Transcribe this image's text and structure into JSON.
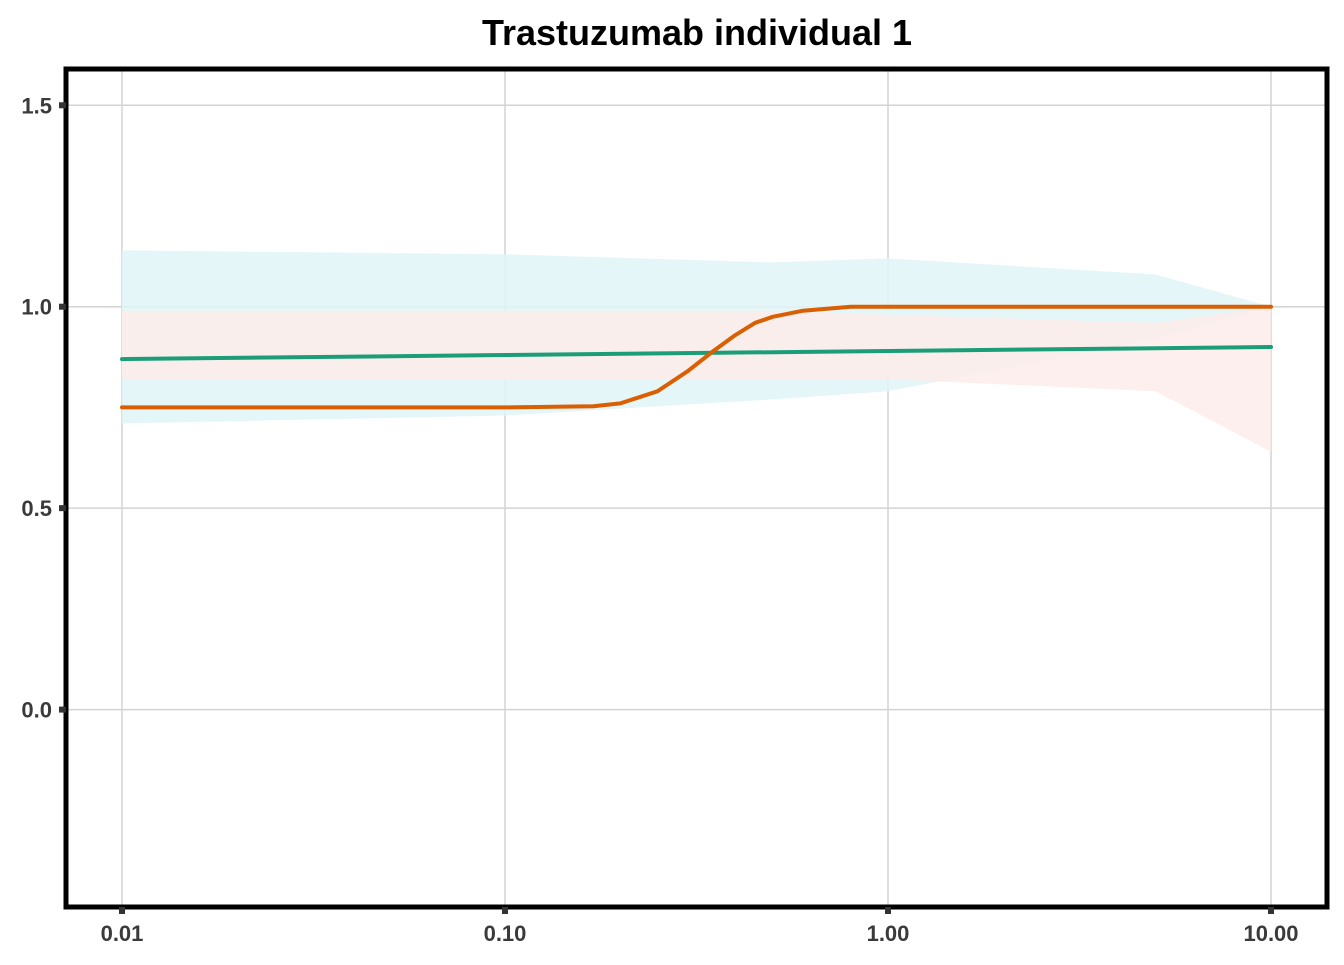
{
  "chart_data": {
    "type": "line",
    "title": "Trastuzumab individual 1",
    "xlabel": "",
    "ylabel": "",
    "x_scale": "log",
    "xlim": [
      0.01,
      10.0
    ],
    "ylim": [
      -0.49,
      1.59
    ],
    "x_ticks": [
      0.01,
      0.1,
      1.0,
      10.0
    ],
    "x_tick_labels": [
      "0.01",
      "0.10",
      "1.00",
      "10.00"
    ],
    "y_ticks": [
      0.0,
      0.5,
      1.0,
      1.5
    ],
    "y_tick_labels": [
      "0.0",
      "0.5",
      "1.0",
      "1.5"
    ],
    "grid": true,
    "legend": "none",
    "series": [
      {
        "color": "#1b9e77",
        "x": [
          0.01,
          0.1,
          1.0,
          10.0
        ],
        "y": [
          0.87,
          0.88,
          0.89,
          0.9
        ]
      },
      {
        "color": "#d95f02",
        "x": [
          0.01,
          0.1,
          0.17,
          0.2,
          0.25,
          0.3,
          0.35,
          0.4,
          0.45,
          0.5,
          0.6,
          0.8,
          1.0,
          10.0
        ],
        "y": [
          0.75,
          0.75,
          0.753,
          0.76,
          0.79,
          0.84,
          0.89,
          0.93,
          0.96,
          0.975,
          0.99,
          1.0,
          1.0,
          1.0
        ]
      }
    ],
    "bands": [
      {
        "color": "#e0f5f7",
        "x": [
          0.01,
          0.1,
          0.5,
          1.0,
          5.0,
          10.0
        ],
        "upper": [
          1.14,
          1.13,
          1.11,
          1.12,
          1.08,
          1.0
        ],
        "lower": [
          0.71,
          0.73,
          0.77,
          0.79,
          0.92,
          1.0
        ]
      },
      {
        "color": "#fdecea",
        "x": [
          0.01,
          0.1,
          0.5,
          1.0,
          5.0,
          10.0
        ],
        "upper": [
          0.99,
          0.99,
          0.99,
          0.98,
          0.96,
          1.0
        ],
        "lower": [
          0.82,
          0.82,
          0.82,
          0.82,
          0.79,
          0.64
        ]
      }
    ]
  }
}
